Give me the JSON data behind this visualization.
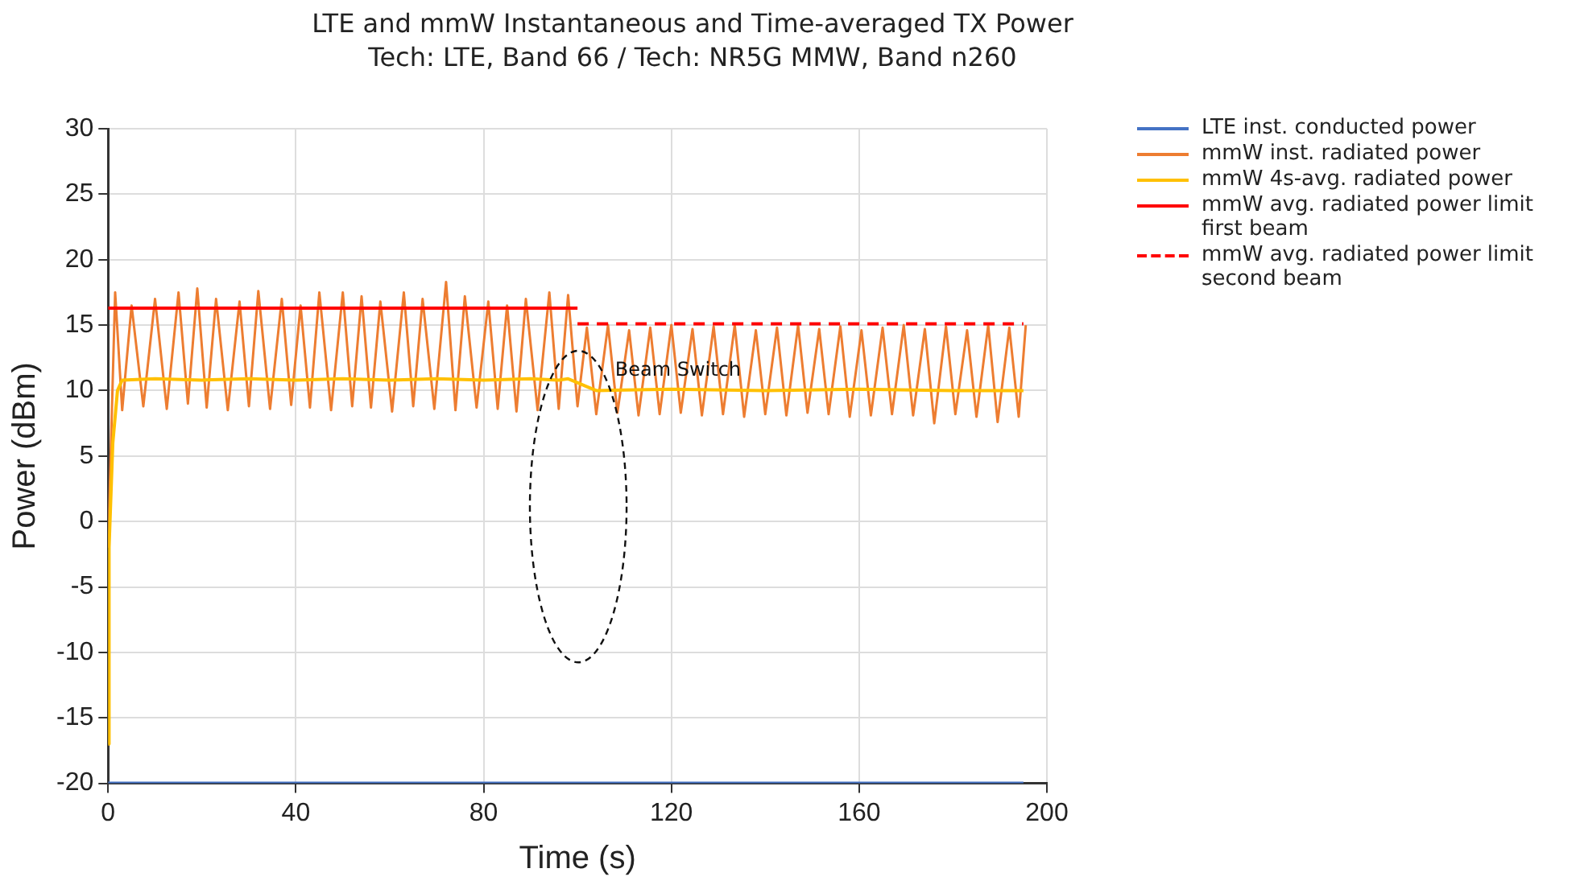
{
  "chart_data": {
    "type": "line",
    "title": "LTE and mmW Instantaneous and Time-averaged TX Power",
    "subtitle": "Tech: LTE, Band 66 / Tech: NR5G MMW, Band n260",
    "xlabel": "Time (s)",
    "ylabel": "Power (dBm)",
    "xlim": [
      0,
      200
    ],
    "xticks": [
      0,
      40,
      80,
      120,
      160,
      200
    ],
    "ylim": [
      -20,
      30
    ],
    "yticks": [
      -20,
      -15,
      -10,
      -5,
      0,
      5,
      10,
      15,
      20,
      25,
      30
    ],
    "grid": true,
    "legend": "right",
    "marker": "none",
    "line_style": "solid",
    "annotations": [
      {
        "text": "Beam Switch",
        "x": 108,
        "y": 11.5
      }
    ],
    "series": [
      {
        "name": "LTE inst. conducted power",
        "color": "#4472c4",
        "x": [
          0,
          40,
          80,
          120,
          160,
          195
        ],
        "values": [
          -20,
          -20,
          -20,
          -20,
          -20,
          -20
        ]
      },
      {
        "name": "mmW inst. radiated power",
        "color": "#ed7d31",
        "x": [
          0,
          1.5,
          3,
          5,
          7.5,
          10,
          12.5,
          15,
          17,
          19,
          21,
          23,
          25.5,
          28,
          30,
          32,
          34.5,
          37,
          39,
          41,
          43,
          45,
          47.5,
          50,
          52,
          54,
          56,
          58,
          60.5,
          63,
          65,
          67,
          69.5,
          72,
          74,
          76,
          78.5,
          81,
          83,
          85,
          87,
          89,
          91.5,
          94,
          96,
          98,
          100,
          102,
          104,
          106.5,
          108.5,
          111,
          113,
          115.5,
          117.5,
          120,
          122,
          124.5,
          126.5,
          129,
          131,
          133.5,
          135.5,
          138,
          140,
          142.5,
          144.5,
          147,
          149,
          151.5,
          153.5,
          156,
          158,
          160.5,
          162.5,
          165,
          167,
          169.5,
          171.5,
          174,
          176,
          178.5,
          180.5,
          183,
          185,
          187.5,
          189.5,
          192,
          194,
          195.5
        ],
        "values": [
          -2,
          17.5,
          8.5,
          16.5,
          8.8,
          17,
          8.6,
          17.5,
          9,
          17.8,
          8.7,
          17,
          8.5,
          16.8,
          8.8,
          17.6,
          8.6,
          17,
          8.9,
          16.5,
          8.7,
          17.5,
          8.5,
          17.5,
          8.8,
          17.2,
          8.7,
          16.8,
          8.4,
          17.5,
          8.8,
          17,
          8.6,
          18.3,
          8.5,
          17.2,
          8.7,
          16.8,
          8.6,
          16.5,
          8.4,
          17,
          8.5,
          17.5,
          8.6,
          17.3,
          8.8,
          14.8,
          8.2,
          15,
          8.3,
          14.6,
          8.1,
          14.8,
          8.2,
          15,
          8.3,
          14.7,
          8.1,
          14.9,
          8.2,
          15,
          8,
          14.6,
          8.2,
          14.8,
          8.1,
          15,
          8.3,
          14.7,
          8.2,
          14.9,
          8,
          14.6,
          8.1,
          14.8,
          8.2,
          15,
          8.1,
          14.7,
          7.5,
          14.9,
          8.2,
          14.6,
          8,
          15,
          7.6,
          14.8,
          8,
          15
        ]
      },
      {
        "name": "mmW 4s-avg. radiated power",
        "color": "#ffc000",
        "x": [
          0,
          0.2,
          1,
          2,
          3,
          10,
          20,
          30,
          40,
          50,
          60,
          70,
          80,
          90,
          96,
          98,
          100,
          102,
          104,
          120,
          140,
          160,
          180,
          195
        ],
        "values": [
          -17,
          -2,
          6,
          10,
          10.8,
          10.9,
          10.8,
          10.9,
          10.8,
          10.9,
          10.8,
          10.9,
          10.8,
          10.9,
          10.8,
          10.9,
          10.6,
          10.3,
          10,
          10.1,
          10,
          10.1,
          10,
          10
        ]
      },
      {
        "name": "mmW avg. radiated power limit first beam",
        "color": "#ff0000",
        "x": [
          0,
          100
        ],
        "values": [
          16.3,
          16.3
        ]
      },
      {
        "name": "mmW avg. radiated power limit second beam",
        "color": "#ff0000",
        "line_style": "dashed",
        "x": [
          100,
          195
        ],
        "values": [
          15.1,
          15.1
        ]
      }
    ]
  }
}
